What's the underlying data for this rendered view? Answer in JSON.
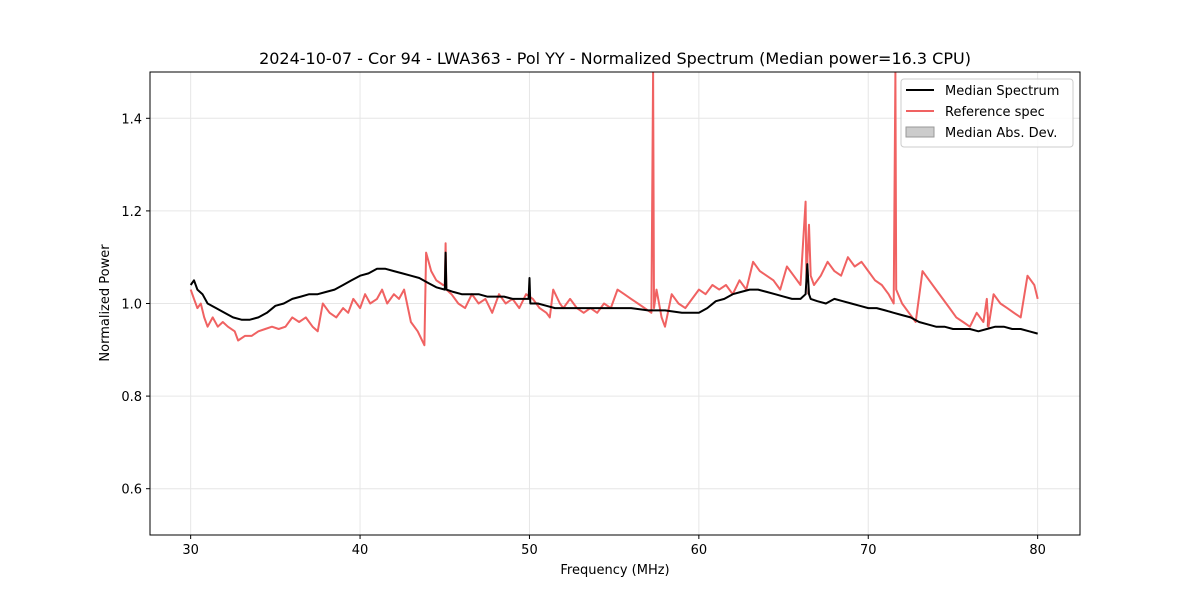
{
  "colors": {
    "median": "#000000",
    "reference": "#f06262",
    "mad_fill": "#cccccc",
    "mad_edge": "#999999",
    "grid": "#e6e6e6"
  },
  "chart_data": {
    "type": "line",
    "title": "2024-10-07 - Cor 94 - LWA363 - Pol YY - Normalized Spectrum (Median power=16.3 CPU)",
    "xlabel": "Frequency (MHz)",
    "ylabel": "Normalized Power",
    "xlim": [
      27.6,
      82.5
    ],
    "ylim": [
      0.5,
      1.5
    ],
    "xticks": [
      30,
      40,
      50,
      60,
      70,
      80
    ],
    "yticks": [
      0.6,
      0.8,
      1.0,
      1.2,
      1.4
    ],
    "xtick_labels": [
      "30",
      "40",
      "50",
      "60",
      "70",
      "80"
    ],
    "ytick_labels": [
      "0.6",
      "0.8",
      "1.0",
      "1.2",
      "1.4"
    ],
    "grid": true,
    "legend_position": "top-right",
    "legend": [
      {
        "label": "Median Spectrum",
        "kind": "line",
        "color_key": "median"
      },
      {
        "label": "Reference spec",
        "kind": "line",
        "color_key": "reference"
      },
      {
        "label": "Median Abs. Dev.",
        "kind": "patch",
        "color_key": "mad_fill"
      }
    ],
    "series": [
      {
        "name": "Median Spectrum",
        "color_key": "median",
        "x": [
          30.0,
          30.2,
          30.4,
          30.7,
          31.0,
          31.5,
          32.0,
          32.5,
          33.0,
          33.5,
          34.0,
          34.5,
          35.0,
          35.5,
          36.0,
          36.5,
          37.0,
          37.5,
          38.0,
          38.5,
          39.0,
          39.5,
          40.0,
          40.5,
          41.0,
          41.5,
          42.0,
          42.5,
          43.0,
          43.5,
          44.0,
          44.5,
          45.0,
          45.05,
          45.1,
          45.5,
          46.0,
          46.5,
          47.0,
          47.5,
          48.0,
          48.5,
          49.0,
          49.5,
          49.95,
          50.0,
          50.05,
          50.5,
          51.0,
          51.5,
          52.0,
          53.0,
          54.0,
          55.0,
          56.0,
          57.0,
          58.0,
          59.0,
          60.0,
          60.5,
          61.0,
          61.5,
          62.0,
          62.5,
          63.0,
          63.5,
          64.0,
          64.5,
          65.0,
          65.5,
          66.0,
          66.3,
          66.4,
          66.5,
          66.6,
          67.0,
          67.5,
          68.0,
          68.5,
          69.0,
          69.5,
          70.0,
          70.5,
          71.0,
          71.5,
          72.0,
          72.5,
          73.0,
          73.5,
          74.0,
          74.5,
          75.0,
          75.5,
          76.0,
          76.5,
          77.0,
          77.5,
          78.0,
          78.5,
          79.0,
          79.5,
          80.0
        ],
        "y": [
          1.04,
          1.05,
          1.03,
          1.02,
          1.0,
          0.99,
          0.98,
          0.97,
          0.965,
          0.965,
          0.97,
          0.98,
          0.995,
          1.0,
          1.01,
          1.015,
          1.02,
          1.02,
          1.025,
          1.03,
          1.04,
          1.05,
          1.06,
          1.065,
          1.075,
          1.075,
          1.07,
          1.065,
          1.06,
          1.055,
          1.045,
          1.035,
          1.03,
          1.11,
          1.03,
          1.025,
          1.02,
          1.02,
          1.02,
          1.015,
          1.015,
          1.015,
          1.01,
          1.01,
          1.01,
          1.055,
          1.0,
          1.0,
          0.995,
          0.99,
          0.99,
          0.99,
          0.99,
          0.99,
          0.99,
          0.985,
          0.985,
          0.98,
          0.98,
          0.99,
          1.005,
          1.01,
          1.02,
          1.025,
          1.03,
          1.03,
          1.025,
          1.02,
          1.015,
          1.01,
          1.01,
          1.02,
          1.085,
          1.02,
          1.01,
          1.005,
          1.0,
          1.01,
          1.005,
          1.0,
          0.995,
          0.99,
          0.99,
          0.985,
          0.98,
          0.975,
          0.97,
          0.96,
          0.955,
          0.95,
          0.95,
          0.945,
          0.945,
          0.945,
          0.94,
          0.945,
          0.95,
          0.95,
          0.945,
          0.945,
          0.94,
          0.935
        ]
      },
      {
        "name": "Reference spec",
        "color_key": "reference",
        "x": [
          30.0,
          30.2,
          30.4,
          30.6,
          30.8,
          31.0,
          31.3,
          31.6,
          31.9,
          32.2,
          32.6,
          32.8,
          33.2,
          33.6,
          34.0,
          34.4,
          34.8,
          35.2,
          35.6,
          36.0,
          36.4,
          36.8,
          37.2,
          37.5,
          37.8,
          38.2,
          38.6,
          39.0,
          39.3,
          39.6,
          40.0,
          40.3,
          40.6,
          41.0,
          41.3,
          41.6,
          42.0,
          42.3,
          42.6,
          43.0,
          43.4,
          43.8,
          43.9,
          44.2,
          44.5,
          44.9,
          45.0,
          45.05,
          45.1,
          45.4,
          45.8,
          46.2,
          46.6,
          47.0,
          47.4,
          47.8,
          48.2,
          48.6,
          49.0,
          49.4,
          49.8,
          50.2,
          50.6,
          51.0,
          51.2,
          51.4,
          51.8,
          52.0,
          52.4,
          52.8,
          53.2,
          53.6,
          54.0,
          54.4,
          54.8,
          55.2,
          55.6,
          56.0,
          56.4,
          56.8,
          57.2,
          57.3,
          57.35,
          57.5,
          57.8,
          58.0,
          58.4,
          58.8,
          59.2,
          59.6,
          60.0,
          60.4,
          60.8,
          61.2,
          61.6,
          62.0,
          62.4,
          62.8,
          63.2,
          63.6,
          64.0,
          64.4,
          64.8,
          65.2,
          65.6,
          66.0,
          66.3,
          66.35,
          66.5,
          66.6,
          66.8,
          67.2,
          67.6,
          68.0,
          68.4,
          68.8,
          69.2,
          69.6,
          70.0,
          70.4,
          70.8,
          71.2,
          71.5,
          71.6,
          71.65,
          72.0,
          72.4,
          72.8,
          73.2,
          73.6,
          74.0,
          74.4,
          74.8,
          75.2,
          75.6,
          76.0,
          76.4,
          76.8,
          77.0,
          77.1,
          77.4,
          77.8,
          78.2,
          78.6,
          79.0,
          79.4,
          79.8,
          80.0
        ],
        "y": [
          1.03,
          1.01,
          0.99,
          1.0,
          0.97,
          0.95,
          0.97,
          0.95,
          0.96,
          0.95,
          0.94,
          0.92,
          0.93,
          0.93,
          0.94,
          0.945,
          0.95,
          0.945,
          0.95,
          0.97,
          0.96,
          0.97,
          0.95,
          0.94,
          1.0,
          0.98,
          0.97,
          0.99,
          0.98,
          1.01,
          0.99,
          1.02,
          1.0,
          1.01,
          1.03,
          1.0,
          1.02,
          1.01,
          1.03,
          0.96,
          0.94,
          0.91,
          1.11,
          1.07,
          1.05,
          1.04,
          1.04,
          1.13,
          1.03,
          1.02,
          1.0,
          0.99,
          1.02,
          1.0,
          1.01,
          0.98,
          1.02,
          1.0,
          1.01,
          0.99,
          1.02,
          1.01,
          0.99,
          0.98,
          0.97,
          1.03,
          1.0,
          0.99,
          1.01,
          0.99,
          0.98,
          0.99,
          0.98,
          1.0,
          0.99,
          1.03,
          1.02,
          1.01,
          1.0,
          0.99,
          0.98,
          1.5,
          0.99,
          1.03,
          0.97,
          0.95,
          1.02,
          1.0,
          0.99,
          1.01,
          1.03,
          1.02,
          1.04,
          1.03,
          1.04,
          1.02,
          1.05,
          1.03,
          1.09,
          1.07,
          1.06,
          1.05,
          1.03,
          1.08,
          1.06,
          1.04,
          1.22,
          1.05,
          1.17,
          1.06,
          1.04,
          1.06,
          1.09,
          1.07,
          1.06,
          1.1,
          1.08,
          1.09,
          1.07,
          1.05,
          1.04,
          1.02,
          1.0,
          1.5,
          1.03,
          1.0,
          0.98,
          0.96,
          1.07,
          1.05,
          1.03,
          1.01,
          0.99,
          0.97,
          0.96,
          0.95,
          0.98,
          0.96,
          1.01,
          0.95,
          1.02,
          1.0,
          0.99,
          0.98,
          0.97,
          1.06,
          1.04,
          1.01
        ]
      }
    ],
    "mad_band": {
      "name": "Median Abs. Dev.",
      "x": [
        45.0,
        45.05,
        45.1,
        66.4,
        66.45,
        66.5,
        77.0,
        77.05,
        77.1
      ],
      "lower": [
        1.03,
        1.03,
        1.03,
        1.02,
        1.02,
        1.02,
        0.95,
        0.95,
        0.95
      ],
      "upper": [
        1.03,
        1.12,
        1.03,
        1.02,
        1.1,
        1.02,
        0.95,
        1.01,
        0.95
      ]
    }
  }
}
